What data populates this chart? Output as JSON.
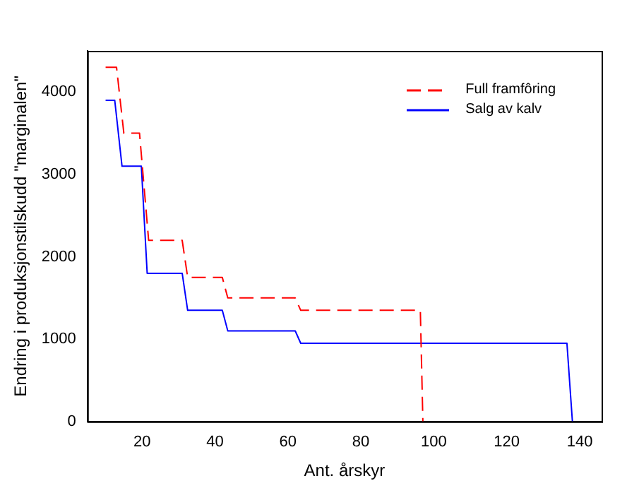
{
  "chart_data": {
    "type": "line",
    "xlabel": "Ant. årskyr",
    "ylabel": "Endring i produksjonstilskudd \"marginalen\"",
    "xlim": [
      5,
      146
    ],
    "xticks": [
      20,
      40,
      60,
      80,
      100,
      120,
      140
    ],
    "ylim": [
      0,
      4500
    ],
    "yticks": [
      0,
      1000,
      2000,
      3000,
      4000
    ],
    "grid": false,
    "legend": "top right",
    "marker": "none",
    "series": [
      {
        "name": "Full framfôring",
        "color": "#ff0000",
        "line_style": "dashed",
        "x": [
          10,
          13,
          15,
          19.3,
          21.8,
          31,
          32.5,
          42,
          43.5,
          62,
          63.5,
          96.3,
          97
        ],
        "values": [
          4300,
          4300,
          3500,
          3500,
          2200,
          2200,
          1750,
          1750,
          1500,
          1500,
          1350,
          1350,
          0
        ]
      },
      {
        "name": "Salg av kalv",
        "color": "#0000ff",
        "line_style": "solid",
        "x": [
          10,
          12.5,
          14.5,
          19.8,
          21.4,
          31,
          32.5,
          42,
          43.5,
          62,
          63.5,
          136.5,
          138
        ],
        "values": [
          3900,
          3900,
          3100,
          3100,
          1800,
          1800,
          1350,
          1350,
          1100,
          1100,
          950,
          950,
          0
        ]
      }
    ]
  }
}
